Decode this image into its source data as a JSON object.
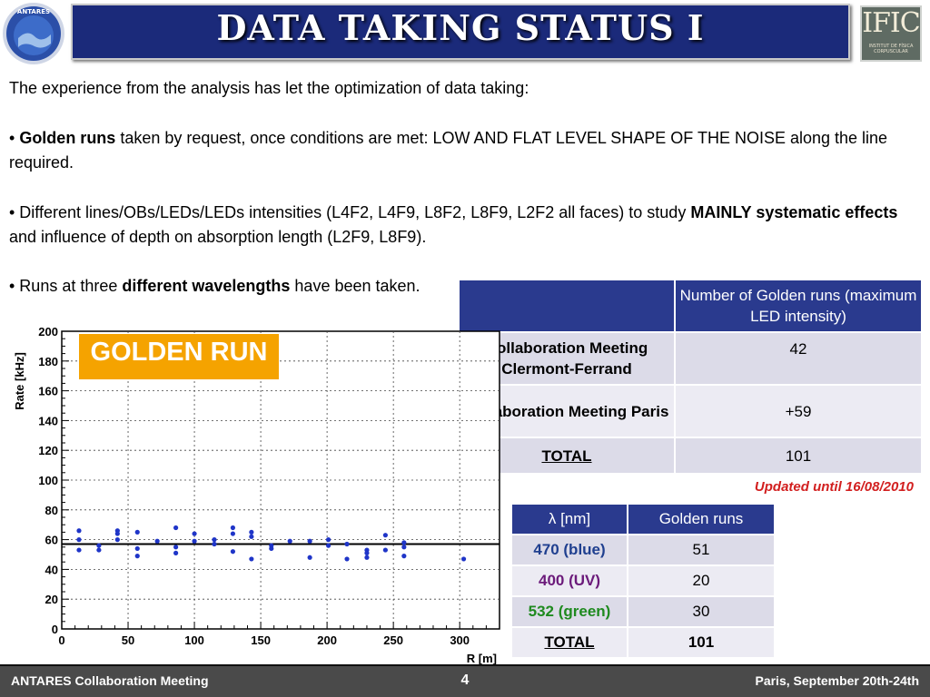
{
  "header": {
    "title": "DATA TAKING STATUS I",
    "right_logo_text": "IFIC",
    "right_logo_subtext": "INSTITUT DE FÍSICA CORPUSCULAR",
    "left_logo_text": "ANTARES"
  },
  "body": {
    "intro": "The experience from the analysis has let the optimization of data taking:",
    "bullet1": {
      "prefix": "• ",
      "bold": "Golden runs",
      "rest": " taken by request, once conditions are met: LOW AND FLAT LEVEL SHAPE OF THE NOISE along the line required."
    },
    "bullet2": {
      "prefix": "• Different lines/OBs/LEDs/LEDs intensities (L4F2, L4F9, L8F2, L8F9, L2F2 all faces) to study ",
      "bold": "MAINLY systematic effects",
      "rest": " and influence of depth on absorption length (L2F9, L8F9)."
    },
    "bullet3": {
      "prefix": "• Runs at three ",
      "bold": "different wavelengths",
      "rest": " have been taken."
    }
  },
  "table1": {
    "header": "Number of Golden runs (maximum LED intensity)",
    "rows": [
      {
        "label": "Collaboration Meeting Clermont-Ferrand",
        "value": "42"
      },
      {
        "label": "Collaboration Meeting Paris",
        "value": "+59"
      },
      {
        "label": "TOTAL",
        "value": "101"
      }
    ]
  },
  "updated_note": "Updated until 16/08/2010",
  "table2": {
    "header_col1": "λ [nm]",
    "header_col2": "Golden runs",
    "rows": [
      {
        "label": "470 (blue)",
        "value": "51",
        "color": "#1f3f8f"
      },
      {
        "label": "400 (UV)",
        "value": "20",
        "color": "#6b1a7a"
      },
      {
        "label": "532 (green)",
        "value": "30",
        "color": "#1f8a1f"
      },
      {
        "label": "TOTAL",
        "value": "101",
        "color": "#000000"
      }
    ]
  },
  "golden_run_label": "GOLDEN RUN",
  "footer": {
    "left": "ANTARES Collaboration Meeting",
    "page": "4",
    "right": "Paris, September 20th-24th"
  },
  "chart_data": {
    "type": "scatter",
    "title": "",
    "xlabel": "R [m]",
    "ylabel": "Rate [kHz]",
    "xlim": [
      0,
      330
    ],
    "ylim": [
      0,
      200
    ],
    "x_ticks": [
      "0",
      "50",
      "100",
      "150",
      "200",
      "250",
      "300"
    ],
    "y_ticks": [
      "0",
      "20",
      "40",
      "60",
      "80",
      "100",
      "120",
      "140",
      "160",
      "180",
      "200"
    ],
    "grid": true,
    "hline": 57,
    "points": [
      [
        13,
        66
      ],
      [
        13,
        60
      ],
      [
        13,
        53
      ],
      [
        28,
        56
      ],
      [
        28,
        53
      ],
      [
        42,
        66
      ],
      [
        42,
        64
      ],
      [
        42,
        60
      ],
      [
        57,
        65
      ],
      [
        57,
        54
      ],
      [
        57,
        49
      ],
      [
        72,
        59
      ],
      [
        86,
        68
      ],
      [
        86,
        55
      ],
      [
        86,
        51
      ],
      [
        100,
        64
      ],
      [
        100,
        59
      ],
      [
        115,
        60
      ],
      [
        115,
        57
      ],
      [
        129,
        68
      ],
      [
        129,
        64
      ],
      [
        129,
        52
      ],
      [
        143,
        65
      ],
      [
        143,
        62
      ],
      [
        143,
        47
      ],
      [
        158,
        56
      ],
      [
        158,
        54
      ],
      [
        172,
        59
      ],
      [
        187,
        59
      ],
      [
        187,
        48
      ],
      [
        201,
        60
      ],
      [
        201,
        56
      ],
      [
        215,
        57
      ],
      [
        215,
        47
      ],
      [
        230,
        53
      ],
      [
        230,
        51
      ],
      [
        230,
        48
      ],
      [
        244,
        63
      ],
      [
        244,
        53
      ],
      [
        258,
        58
      ],
      [
        258,
        55
      ],
      [
        258,
        49
      ],
      [
        303,
        47
      ]
    ]
  }
}
